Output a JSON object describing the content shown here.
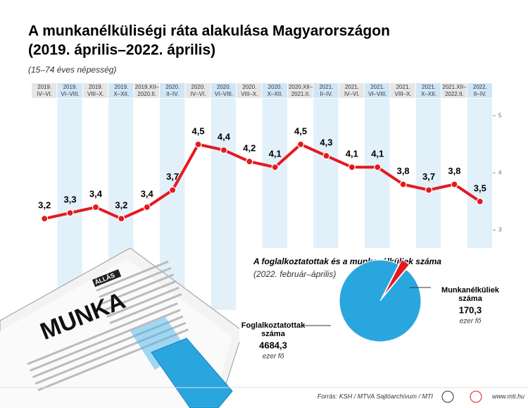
{
  "title": "A munkanélküliségi ráta alakulása Magyarországon",
  "title2": "(2019. április–2022. április)",
  "subtitle": "(15–74 éves népesség)",
  "chart_data": [
    {
      "type": "line",
      "categories": [
        [
          "2019.",
          "IV–VI."
        ],
        [
          "2019.",
          "VI–VIII."
        ],
        [
          "2019.",
          "VIII–X."
        ],
        [
          "2019.",
          "X–XII."
        ],
        [
          "2019.XII–",
          "2020.II."
        ],
        [
          "2020.",
          "II–IV."
        ],
        [
          "2020.",
          "IV–VI."
        ],
        [
          "2020.",
          "VI–VIII."
        ],
        [
          "2020.",
          "VIII–X."
        ],
        [
          "2020.",
          "X–XII."
        ],
        [
          "2020.XII–",
          "2021.II."
        ],
        [
          "2021.",
          "II–IV."
        ],
        [
          "2021.",
          "IV–VI."
        ],
        [
          "2021.",
          "VI–VIII."
        ],
        [
          "2021.",
          "VIII–X."
        ],
        [
          "2021.",
          "X–XII."
        ],
        [
          "2021.XII–",
          "2022.II."
        ],
        [
          "2022.",
          "II–IV."
        ]
      ],
      "values": [
        3.2,
        3.3,
        3.4,
        3.2,
        3.4,
        3.7,
        4.5,
        4.4,
        4.2,
        4.1,
        4.5,
        4.3,
        4.1,
        4.1,
        3.8,
        3.7,
        3.8,
        3.5
      ],
      "value_labels": [
        "3,2",
        "3,3",
        "3,4",
        "3,2",
        "3,4",
        "3,7",
        "4,5",
        "4,4",
        "4,2",
        "4,1",
        "4,5",
        "4,3",
        "4,1",
        "4,1",
        "3,8",
        "3,7",
        "3,8",
        "3,5"
      ],
      "color": "#e3191f",
      "ylim": [
        1.6,
        5.3
      ],
      "yticks": [
        3,
        4,
        5
      ]
    },
    {
      "type": "pie",
      "title": "A foglalkoztatottak és a munkanélküliek száma",
      "subtitle": "(2022. február–április)",
      "series": [
        {
          "name": [
            "Foglalkoztatottak",
            "száma"
          ],
          "value": 4684.3,
          "value_label": "4684,3",
          "unit": "ezer fő",
          "color": "#2aa6df"
        },
        {
          "name": [
            "Munkanélküliek",
            "száma"
          ],
          "value": 170.3,
          "value_label": "170,3",
          "unit": "ezer fő",
          "color": "#e3191f"
        }
      ]
    }
  ],
  "illustration": {
    "headline": "MUNKA",
    "tag": "ÁLLÁS"
  },
  "footer": {
    "source": "Forrás: KSH / MTVA Sajtóarchívum / MTI",
    "site": "www.mti.hu"
  }
}
